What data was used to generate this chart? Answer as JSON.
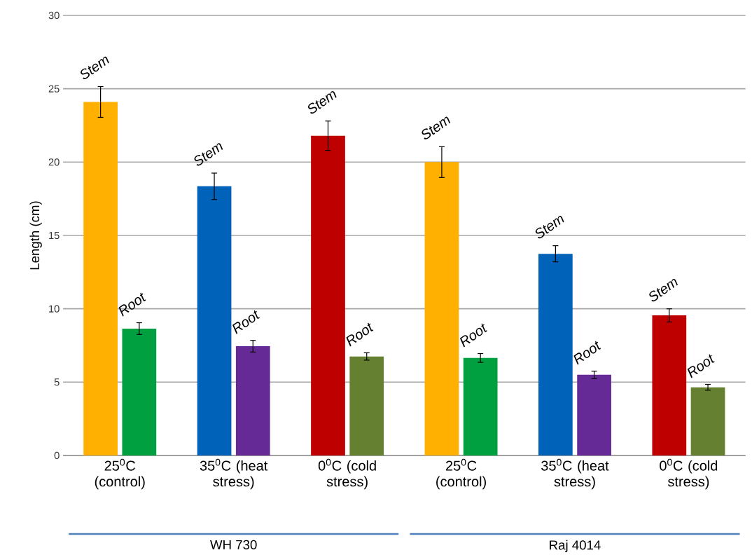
{
  "chart_data": {
    "type": "bar",
    "ylabel": "Length (cm)",
    "categories": [
      "25$^{0}$C (control)",
      "35$^{0}$C (heat stress)",
      "0$^{0}$C (cold stress)",
      "25$^{0}$C (control)",
      "35$^{0}$C (heat stress)",
      "0$^{0}$C (cold stress)"
    ],
    "series": [
      {
        "name": "Stem",
        "colors": [
          "#ffb000",
          "#0062b8",
          "#be0000",
          "#ffb000",
          "#0062b8",
          "#be0000"
        ],
        "values": [
          24.1,
          18.35,
          21.8,
          20.0,
          13.75,
          9.55
        ],
        "errors": [
          1.05,
          0.9,
          1.0,
          1.05,
          0.55,
          0.45
        ]
      },
      {
        "name": "Root",
        "colors": [
          "#00a040",
          "#662a96",
          "#658030",
          "#00a040",
          "#662a96",
          "#658030"
        ],
        "values": [
          8.65,
          7.45,
          6.75,
          6.65,
          5.5,
          4.65
        ],
        "errors": [
          0.4,
          0.4,
          0.25,
          0.3,
          0.25,
          0.2
        ]
      }
    ],
    "ylim": [
      0,
      30
    ],
    "yticks": [
      0,
      5,
      10,
      15,
      20,
      25,
      30
    ],
    "grid": "y",
    "annotations": [
      "WH 730",
      "Raj 4014"
    ]
  }
}
